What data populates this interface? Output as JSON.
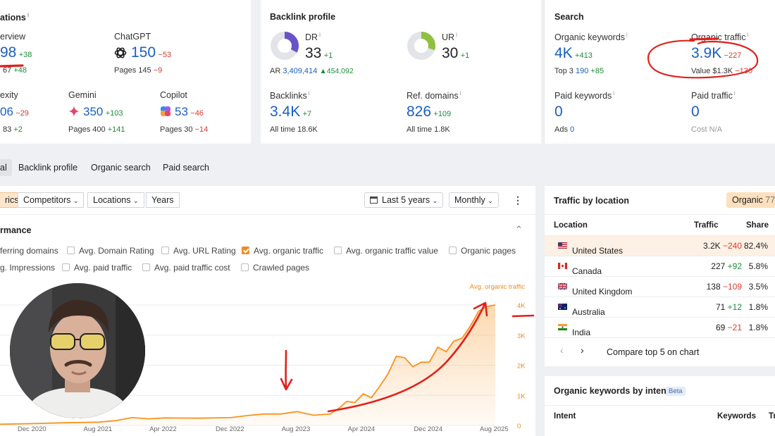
{
  "ai_card": {
    "title": "ations",
    "overview_label": "erview",
    "overview_value": "98",
    "overview_delta": "+38",
    "overview_sub_value": "67",
    "overview_sub_delta": "+48",
    "chatgpt_label": "ChatGPT",
    "chatgpt_value": "150",
    "chatgpt_delta": "−53",
    "chatgpt_pages_label": "Pages",
    "chatgpt_pages_value": "145",
    "chatgpt_pages_delta": "−9",
    "perplexity_label": "exity",
    "perplexity_value": "06",
    "perplexity_delta": "−29",
    "perplexity_sub_value": "83",
    "perplexity_sub_delta": "+2",
    "gemini_label": "Gemini",
    "gemini_value": "350",
    "gemini_delta": "+103",
    "gemini_pages_label": "Pages",
    "gemini_pages_value": "400",
    "gemini_pages_delta": "+141",
    "copilot_label": "Copilot",
    "copilot_value": "53",
    "copilot_delta": "−46",
    "copilot_pages_label": "Pages",
    "copilot_pages_value": "30",
    "copilot_pages_delta": "−14"
  },
  "backlink_card": {
    "title": "Backlink profile",
    "dr_label": "DR",
    "dr_value": "33",
    "dr_delta": "+1",
    "dr_ring": 33,
    "ur_label": "UR",
    "ur_value": "30",
    "ur_delta": "+1",
    "ur_ring": 30,
    "ar_label": "AR",
    "ar_value": "3,409,414",
    "ar_delta": "▲454,092",
    "backlinks_label": "Backlinks",
    "backlinks_value": "3.4K",
    "backlinks_delta": "+7",
    "backlinks_alltime": "All time 18.6K",
    "refdomains_label": "Ref. domains",
    "refdomains_value": "826",
    "refdomains_delta": "+109",
    "refdomains_alltime": "All time 1.8K"
  },
  "search_card": {
    "title": "Search",
    "ok_label": "Organic keywords",
    "ok_value": "4K",
    "ok_delta": "+413",
    "ok_top3_label": "Top 3",
    "ok_top3_value": "190",
    "ok_top3_delta": "+85",
    "ot_label": "Organic traffic",
    "ot_value": "3.9K",
    "ot_delta": "−227",
    "ot_value_label": "Value",
    "ot_value_value": "$1.3K",
    "ot_value_delta": "−130",
    "pk_label": "Paid keywords",
    "pk_value": "0",
    "pk_ads_label": "Ads",
    "pk_ads_value": "0",
    "pt_label": "Paid traffic",
    "pt_value": "0",
    "pt_cost": "Cost N/A"
  },
  "tabs": [
    "al",
    "Backlink profile",
    "Organic search",
    "Paid search"
  ],
  "toolbar": {
    "metrics": "rics",
    "competitors": "Competitors",
    "locations": "Locations",
    "years": "Years",
    "period": "Last 5 years",
    "interval": "Monthly",
    "more_icon": "kebab-icon"
  },
  "performance": {
    "title": "rmance",
    "checks": [
      {
        "label": "ferring domains",
        "checked": false,
        "noBox": true
      },
      {
        "label": "Avg. Domain Rating",
        "checked": false
      },
      {
        "label": "Avg. URL Rating",
        "checked": false
      },
      {
        "label": "Avg. organic traffic",
        "checked": true
      },
      {
        "label": "Avg. organic traffic value",
        "checked": false
      },
      {
        "label": "Organic pages",
        "checked": false
      },
      {
        "label": "g. Impressions",
        "checked": false,
        "noBox": true
      },
      {
        "label": "Avg. paid traffic",
        "checked": false
      },
      {
        "label": "Avg. paid traffic cost",
        "checked": false
      },
      {
        "label": "Crawled pages",
        "checked": false
      }
    ]
  },
  "chart_data": {
    "type": "area",
    "series": [
      {
        "name": "Avg. organic traffic",
        "color": "#f7931e"
      }
    ],
    "x_ticks": [
      "Dec 2020",
      "Aug 2021",
      "Apr 2022",
      "Dec 2022",
      "Aug 2023",
      "Apr 2024",
      "Dec 2024",
      "Aug 2025"
    ],
    "y_ticks": [
      "4K",
      "3K",
      "2K",
      "1K",
      "0"
    ],
    "ylim": [
      0,
      4000
    ],
    "grid": true,
    "points": [
      [
        "2020-08",
        40
      ],
      [
        "2020-12",
        60
      ],
      [
        "2021-04",
        90
      ],
      [
        "2021-08",
        110
      ],
      [
        "2021-10",
        160
      ],
      [
        "2021-12",
        260
      ],
      [
        "2022-02",
        220
      ],
      [
        "2022-04",
        250
      ],
      [
        "2022-08",
        240
      ],
      [
        "2022-12",
        260
      ],
      [
        "2023-02",
        330
      ],
      [
        "2023-04",
        380
      ],
      [
        "2023-06",
        380
      ],
      [
        "2023-08",
        460
      ],
      [
        "2023-10",
        340
      ],
      [
        "2023-12",
        380
      ],
      [
        "2024-01",
        560
      ],
      [
        "2024-02",
        800
      ],
      [
        "2024-03",
        760
      ],
      [
        "2024-04",
        1050
      ],
      [
        "2024-05",
        920
      ],
      [
        "2024-06",
        1300
      ],
      [
        "2024-07",
        1700
      ],
      [
        "2024-08",
        2300
      ],
      [
        "2024-09",
        2250
      ],
      [
        "2024-10",
        1950
      ],
      [
        "2024-11",
        2100
      ],
      [
        "2024-12",
        2100
      ],
      [
        "2025-01",
        2600
      ],
      [
        "2025-02",
        2450
      ],
      [
        "2025-03",
        2800
      ],
      [
        "2025-04",
        2900
      ],
      [
        "2025-05",
        3300
      ],
      [
        "2025-06",
        3800
      ],
      [
        "2025-07",
        3950
      ],
      [
        "2025-08",
        4000
      ]
    ]
  },
  "traffic_location": {
    "title": "Traffic by location",
    "badge": "Organic",
    "badge_count": "77",
    "col_location": "Location",
    "col_traffic": "Traffic",
    "col_share": "Share",
    "rows": [
      {
        "country": "United States",
        "traffic": "3.2K",
        "delta": "−240",
        "share": "82.4%",
        "flag": "us"
      },
      {
        "country": "Canada",
        "traffic": "227",
        "delta": "+92",
        "share": "5.8%",
        "flag": "ca"
      },
      {
        "country": "United Kingdom",
        "traffic": "138",
        "delta": "−109",
        "share": "3.5%",
        "flag": "gb"
      },
      {
        "country": "Australia",
        "traffic": "71",
        "delta": "+12",
        "share": "1.8%",
        "flag": "au"
      },
      {
        "country": "India",
        "traffic": "69",
        "delta": "−21",
        "share": "1.8%",
        "flag": "in"
      }
    ],
    "compare_label": "Compare top 5 on chart"
  },
  "keywords_intent": {
    "title": "Organic keywords by intent",
    "beta": "Beta",
    "col_intent": "Intent",
    "col_keywords": "Keywords",
    "col_traffic": "Tr"
  },
  "colors": {
    "accent": "#f7931e",
    "link": "#1a5fc2",
    "positive": "#1e8c3a",
    "negative": "#d93a2b",
    "annotation": "#e0201b"
  }
}
